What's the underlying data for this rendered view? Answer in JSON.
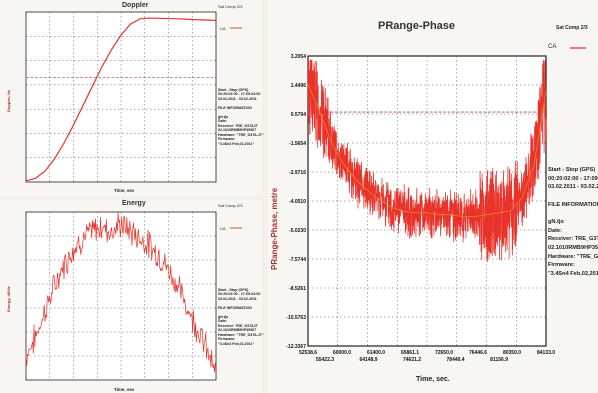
{
  "chart_data": [
    {
      "type": "line",
      "title": "Doppler",
      "corner_label": "Sat Comp 2/3",
      "legend": [
        "CA"
      ],
      "ylabel": "Doppler, Hz",
      "xlabel": "Time, sec",
      "ylim": [
        0,
        7
      ],
      "xlim": [
        0,
        10
      ],
      "series": [
        {
          "name": "CA",
          "color": "#e8322a",
          "x": [
            0,
            0.5,
            1,
            1.5,
            2,
            2.5,
            3,
            3.5,
            4,
            4.5,
            5,
            5.5,
            6,
            6.5,
            7,
            7.5,
            8,
            8.5,
            9,
            9.5,
            10
          ],
          "y": [
            0.05,
            0.15,
            0.45,
            0.95,
            1.6,
            2.35,
            3.15,
            3.95,
            4.75,
            5.45,
            6.05,
            6.5,
            6.72,
            6.75,
            6.74,
            6.73,
            6.72,
            6.7,
            6.68,
            6.67,
            6.65
          ]
        }
      ],
      "reference_line": {
        "y": 4.3,
        "color": "#b0487c"
      },
      "info_lines": [
        "Start - Stop (GPS)",
        "00:20:02:00 - 17:09:24:00",
        "03.02.2011 - 03.02.2011",
        "",
        "FILE INFORMATION",
        "",
        "gN.tjo",
        "Date:",
        "Receiver: TRE_G3TAJT",
        "02.1010RMB9HP35307",
        "Hardware: \"TRE_G3TA.JT\"",
        "Firmware:",
        "\"3.4Sn4 Feb,02,2011\""
      ]
    },
    {
      "type": "line",
      "title": "Energy",
      "corner_label": "Sat Comp 2/3",
      "legend": [
        "CA"
      ],
      "ylabel": "Energy, dBHz",
      "xlabel": "Time, sec",
      "ylim": [
        0,
        7
      ],
      "xlim": [
        0,
        10
      ],
      "series": [
        {
          "name": "CA",
          "color": "#e8322a",
          "x": [
            0,
            0.5,
            1,
            1.5,
            2,
            2.5,
            3,
            3.5,
            4,
            4.5,
            5,
            5.5,
            6,
            6.5,
            7,
            7.5,
            8,
            8.5,
            9,
            9.5,
            10
          ],
          "y": [
            1.0,
            1.8,
            2.9,
            3.9,
            4.8,
            5.5,
            5.9,
            6.2,
            6.4,
            6.2,
            6.5,
            6.2,
            5.9,
            5.6,
            5.2,
            4.6,
            3.9,
            3.0,
            2.2,
            1.3,
            0.2
          ]
        }
      ],
      "info_lines": [
        "Start - Stop (GPS)",
        "00:20:02:00 - 17:09:24:00",
        "03.02.2011 - 03.02.2011",
        "",
        "FILE INFORMATION",
        "",
        "gN.tjo",
        "Date:",
        "Receiver: TRE_G3TAJT",
        "02.1010RMB9HP35307",
        "Hardware: \"TRE_G3TA.JT\"",
        "Firmware:",
        "\"3.4Sn4 Feb,02,2011\""
      ]
    },
    {
      "type": "line",
      "title": "PRange-Phase",
      "corner_label": "Sat Comp 2/3",
      "legend": [
        "CA"
      ],
      "ylabel": "PRange-Phase, metre",
      "xlabel": "Time, sec.",
      "y_ticks": [
        "3.2054",
        "1.4496",
        "0.5794",
        "-1.5654",
        "-2.9716",
        "-4.0510",
        "-5.0230",
        "-7.5744",
        "-8.5261",
        "-10.5763",
        "-12.3367"
      ],
      "x_ticks_top": [
        "52538.6",
        "60000.0",
        "61400.0",
        "65861.1",
        "72650.0",
        "76446.6",
        "80350.0",
        "84133.0"
      ],
      "x_ticks_bottom": [
        "55422.3",
        "64148.9",
        "74621.2",
        "78440.4",
        "81156.9"
      ],
      "ylim": [
        -12.3367,
        3.2054
      ],
      "xlim": [
        52538.6,
        84133.0
      ],
      "series": [
        {
          "name": "CA",
          "color": "#e8322a",
          "x": [
            52538.6,
            54118,
            55698,
            57278,
            58858,
            60438,
            62017,
            63597,
            65177,
            66757,
            68336,
            69916,
            71496,
            73076,
            74656,
            76236,
            77816,
            79395,
            80975,
            82555,
            84133
          ],
          "y": [
            1.7,
            0.2,
            -1.5,
            -2.6,
            -3.4,
            -4.0,
            -4.5,
            -4.9,
            -5.1,
            -5.2,
            -5.2,
            -5.3,
            -5.3,
            -5.4,
            -5.4,
            -5.3,
            -5.2,
            -5.1,
            -4.4,
            -2.6,
            1.3
          ]
        }
      ],
      "reference_line": {
        "y": 0.2,
        "color": "#b0487c"
      },
      "info_lines": [
        "Start - Stop (GPS)",
        "00:20:02:00 - 17:09:24:00",
        "03.02.2011 - 03.02.2011",
        "",
        "FILE INFORMATION",
        "",
        "gN.tjo",
        "Date:",
        "Receiver: TRE_G3TAJT",
        "02.1010RMB9HP35307",
        "Hardware: \"TRE_G3TA.JT\"",
        "Firmware:",
        "\"3.4Sn4 Feb,02,2011\""
      ]
    }
  ]
}
